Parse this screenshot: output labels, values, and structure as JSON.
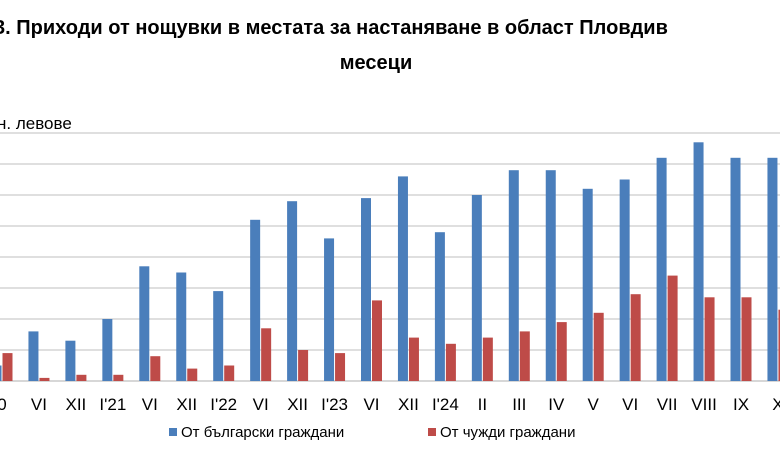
{
  "chart_data": {
    "type": "bar",
    "title_line1": "3. Приходи от нощувки в местата за настаняване в област Пловдив",
    "title_line2": "месеци",
    "ylabel": "н. левове",
    "grid": true,
    "legend_position": "bottom",
    "categories": [
      "0",
      "VI",
      "XII",
      "I'21",
      "VI",
      "XII",
      "I'22",
      "VI",
      "XII",
      "I'23",
      "VI",
      "XII",
      "I'24",
      "II",
      "III",
      "IV",
      "V",
      "VI",
      "VII",
      "VIII",
      "IX",
      "X"
    ],
    "series": [
      {
        "name": "От български граждани",
        "color": "#4a7ebb",
        "values": [
          0.5,
          1.6,
          1.3,
          2.0,
          3.7,
          3.5,
          2.9,
          5.2,
          5.8,
          4.6,
          5.9,
          6.6,
          4.8,
          6.0,
          6.8,
          6.8,
          6.2,
          6.5,
          7.2,
          7.7,
          7.2,
          7.2
        ]
      },
      {
        "name": "От чужди граждани",
        "color": "#be4b48",
        "values": [
          0.9,
          0.1,
          0.2,
          0.2,
          0.8,
          0.4,
          0.5,
          1.7,
          1.0,
          0.9,
          2.6,
          1.4,
          1.2,
          1.4,
          1.6,
          1.9,
          2.2,
          2.8,
          3.4,
          2.7,
          2.7,
          2.3
        ]
      }
    ],
    "ylim": [
      0,
      8
    ]
  }
}
